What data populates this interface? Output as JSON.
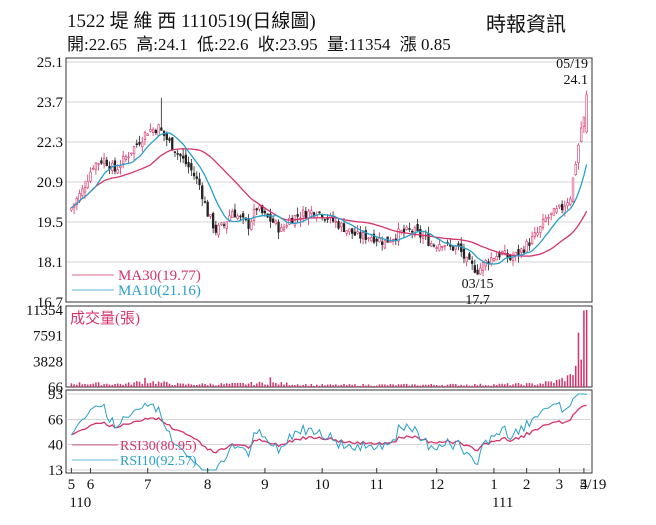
{
  "header": {
    "stock_code": "1522",
    "stock_name": "堤 維 西",
    "date_label": "1110519(日線圖)",
    "source": "時報資訊",
    "quote": {
      "open": "開:22.65",
      "high": "高:24.1",
      "low": "低:22.6",
      "close": "收:23.95",
      "volume": "量:11354",
      "change": "漲 0.85"
    }
  },
  "chart_data": [
    {
      "type": "candlestick",
      "panel": "price",
      "y_ticks": [
        "25.1",
        "23.7",
        "22.3",
        "20.9",
        "19.5",
        "18.1",
        "16.7"
      ],
      "ylim": [
        16.7,
        25.1
      ],
      "legend": [
        {
          "label": "MA30(19.77)",
          "color": "#d6336c"
        },
        {
          "label": "MA10(21.16)",
          "color": "#2a9fc9"
        }
      ],
      "annotations": [
        {
          "label": "05/19",
          "value": "24.1"
        },
        {
          "label": "03/15",
          "value": "17.7"
        }
      ],
      "high_low": {
        "high": 24.1,
        "high_date": "05/19",
        "low": 17.7,
        "low_date": "03/15"
      },
      "last_bar": {
        "open": 22.65,
        "high": 24.1,
        "low": 22.6,
        "close": 23.95
      },
      "ma_last": {
        "MA10": 21.16,
        "MA30": 19.77
      },
      "close_keyframes": [
        [
          0,
          20.0
        ],
        [
          4,
          20.6
        ],
        [
          8,
          21.5
        ],
        [
          12,
          21.7
        ],
        [
          16,
          21.3
        ],
        [
          22,
          22.0
        ],
        [
          28,
          22.7
        ],
        [
          32,
          22.8
        ],
        [
          35,
          22.4
        ],
        [
          40,
          21.8
        ],
        [
          44,
          21.3
        ],
        [
          47,
          20.8
        ],
        [
          50,
          19.8
        ],
        [
          53,
          19.2
        ],
        [
          56,
          19.4
        ],
        [
          59,
          19.9
        ],
        [
          62,
          19.6
        ],
        [
          65,
          19.4
        ],
        [
          68,
          20.0
        ],
        [
          71,
          19.7
        ],
        [
          74,
          19.5
        ],
        [
          77,
          19.2
        ],
        [
          80,
          19.6
        ],
        [
          85,
          19.8
        ],
        [
          90,
          19.9
        ],
        [
          95,
          19.6
        ],
        [
          100,
          19.3
        ],
        [
          105,
          19.0
        ],
        [
          110,
          19.0
        ],
        [
          115,
          18.8
        ],
        [
          120,
          19.1
        ],
        [
          125,
          19.2
        ],
        [
          130,
          18.9
        ],
        [
          133,
          18.7
        ],
        [
          136,
          18.8
        ],
        [
          139,
          18.6
        ],
        [
          142,
          18.6
        ],
        [
          145,
          18.1
        ],
        [
          149,
          17.8
        ],
        [
          152,
          18.1
        ],
        [
          155,
          18.3
        ],
        [
          158,
          18.4
        ],
        [
          161,
          18.2
        ],
        [
          164,
          18.4
        ],
        [
          167,
          18.7
        ],
        [
          171,
          19.1
        ],
        [
          174,
          19.6
        ],
        [
          177,
          19.8
        ],
        [
          180,
          20.0
        ],
        [
          183,
          20.4
        ],
        [
          185,
          21.6
        ],
        [
          187,
          22.8
        ],
        [
          188,
          23.1
        ],
        [
          189,
          23.95
        ]
      ]
    },
    {
      "type": "bar",
      "panel": "volume",
      "title": "成交量(張)",
      "y_ticks": [
        "11354",
        "7591",
        "3828",
        "66"
      ],
      "ylim": [
        66,
        11354
      ],
      "volume_keyframes": [
        [
          0,
          600
        ],
        [
          20,
          500
        ],
        [
          27,
          900
        ],
        [
          40,
          450
        ],
        [
          60,
          500
        ],
        [
          72,
          650
        ],
        [
          90,
          350
        ],
        [
          120,
          380
        ],
        [
          150,
          400
        ],
        [
          170,
          500
        ],
        [
          178,
          900
        ],
        [
          183,
          1600
        ],
        [
          185,
          3500
        ],
        [
          186,
          6500
        ],
        [
          187,
          5000
        ],
        [
          188,
          8500
        ],
        [
          189,
          11354
        ]
      ],
      "spikes": [
        [
          27,
          1400
        ],
        [
          73,
          1500
        ]
      ]
    },
    {
      "type": "line",
      "panel": "rsi",
      "y_ticks": [
        "93",
        "66",
        "40",
        "13"
      ],
      "ylim": [
        13,
        93
      ],
      "legend": [
        {
          "label": "RSI30(80.95)",
          "color": "#d6336c"
        },
        {
          "label": "RSI10(92.57)",
          "color": "#2a9fc9"
        }
      ],
      "rsi_last": {
        "RSI30": 80.95,
        "RSI10": 92.57
      }
    }
  ],
  "x_axis": {
    "month_ticks": [
      {
        "label": "5",
        "idx": 0
      },
      {
        "label": "6",
        "idx": 7
      },
      {
        "label": "7",
        "idx": 28
      },
      {
        "label": "8",
        "idx": 50
      },
      {
        "label": "9",
        "idx": 71
      },
      {
        "label": "10",
        "idx": 92
      },
      {
        "label": "11",
        "idx": 112
      },
      {
        "label": "12",
        "idx": 134
      },
      {
        "label": "1",
        "idx": 155
      },
      {
        "label": "2",
        "idx": 167
      },
      {
        "label": "3",
        "idx": 179
      },
      {
        "label": "4",
        "idx": 188
      }
    ],
    "end_label": "5/19",
    "year_labels": [
      {
        "label": "110",
        "idx": 0
      },
      {
        "label": "111",
        "idx": 155
      }
    ],
    "n_bars": 190
  },
  "colors": {
    "up": "#d6336c",
    "down": "#222222",
    "ma30": "#d6336c",
    "ma10": "#2a9fc9",
    "volume": "#d6336c",
    "grid": "#c8c8c8"
  }
}
